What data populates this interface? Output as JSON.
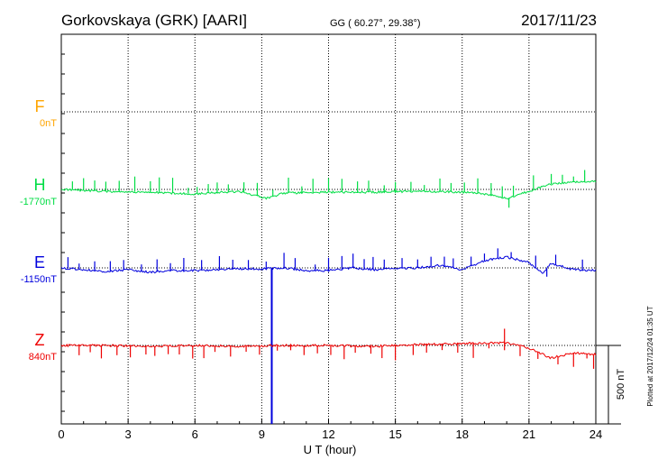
{
  "header": {
    "station": "Gorkovskaya (GRK)  [AARI]",
    "coords": "GG ( 60.27°,  29.38°)",
    "date": "2017/11/23"
  },
  "plotted_note": "Plotted at 2017/12/24 01:35 UT",
  "scale_label": "500 nT",
  "chart_data": {
    "type": "line",
    "xlabel": "U T (hour)",
    "xlim": [
      0,
      24
    ],
    "xticks": [
      "0",
      "3",
      "6",
      "9",
      "12",
      "15",
      "18",
      "21",
      "24"
    ],
    "series": [
      {
        "name": "F",
        "baseline_label": "0nT",
        "color": "#ffa500",
        "level_nT": 0,
        "values": []
      },
      {
        "name": "H",
        "baseline_label": "-1770nT",
        "color": "#00dd44",
        "level_nT": -1770,
        "trend": [
          [
            0,
            0
          ],
          [
            2,
            -2
          ],
          [
            4,
            -3
          ],
          [
            6,
            -5
          ],
          [
            8,
            -2
          ],
          [
            9.2,
            -10
          ],
          [
            10,
            -4
          ],
          [
            12,
            -3
          ],
          [
            14,
            -3
          ],
          [
            16,
            -2
          ],
          [
            18,
            -3
          ],
          [
            19,
            -5
          ],
          [
            20,
            -10
          ],
          [
            21,
            -2
          ],
          [
            22,
            6
          ],
          [
            23,
            8
          ],
          [
            24,
            9
          ]
        ],
        "spikes_up": [
          0.5,
          1,
          1.5,
          2,
          2.6,
          3.3,
          4,
          4.4,
          5,
          5.7,
          6.1,
          6.6,
          7,
          7.5,
          8.2,
          8.8,
          9.5,
          10.2,
          10.8,
          11.3,
          12,
          12.6,
          13.3,
          13.8,
          14.5,
          15,
          15.7,
          16.3,
          17,
          17.5,
          18.1,
          18.7,
          19.3,
          19.8,
          20.3,
          21.2,
          22,
          22.5,
          23,
          23.5
        ],
        "spikes_down": [
          20.1
        ]
      },
      {
        "name": "E",
        "baseline_label": "-1150nT",
        "color": "#0000dd",
        "level_nT": -1150,
        "trend": [
          [
            0,
            0
          ],
          [
            1,
            -2
          ],
          [
            2,
            -4
          ],
          [
            3,
            -2
          ],
          [
            4,
            -5
          ],
          [
            5,
            -3
          ],
          [
            6,
            -3
          ],
          [
            7,
            -2
          ],
          [
            8,
            -1
          ],
          [
            9,
            -1
          ],
          [
            10,
            0
          ],
          [
            11,
            -3
          ],
          [
            12,
            -3
          ],
          [
            13,
            0
          ],
          [
            14,
            -2
          ],
          [
            15,
            -1
          ],
          [
            16,
            0
          ],
          [
            17,
            3
          ],
          [
            18,
            -2
          ],
          [
            19,
            8
          ],
          [
            20,
            12
          ],
          [
            21,
            6
          ],
          [
            21.6,
            -6
          ],
          [
            22,
            5
          ],
          [
            23,
            -2
          ],
          [
            24,
            -3
          ]
        ],
        "spikes_up": [
          0.3,
          0.8,
          1.5,
          2.2,
          2.8,
          3.6,
          4.3,
          4.9,
          5.5,
          6.3,
          7.1,
          7.7,
          8.4,
          9.2,
          10,
          10.5,
          11.4,
          12,
          12.6,
          13.1,
          13.6,
          14,
          14.5,
          15.3,
          16,
          16.6,
          17.2,
          17.6,
          18.4,
          19,
          19.6,
          20.2,
          21.3,
          22.2,
          23.4
        ],
        "spikes_down": [
          21.8
        ],
        "outage": {
          "x": 9.45,
          "to_bottom": true
        }
      },
      {
        "name": "Z",
        "baseline_label": "840nT",
        "color": "#ee0000",
        "level_nT": 840,
        "trend": [
          [
            0,
            0
          ],
          [
            2,
            0
          ],
          [
            4,
            -1
          ],
          [
            6,
            0
          ],
          [
            8,
            -1
          ],
          [
            10,
            0
          ],
          [
            12,
            0
          ],
          [
            14,
            -1
          ],
          [
            16,
            1
          ],
          [
            18,
            2
          ],
          [
            20,
            3
          ],
          [
            21,
            -3
          ],
          [
            22,
            -14
          ],
          [
            23,
            -8
          ],
          [
            24,
            -10
          ]
        ],
        "spikes_down": [
          0.8,
          1.3,
          1.8,
          2.5,
          3.1,
          3.8,
          4.2,
          4.8,
          5.3,
          5.9,
          6.4,
          6.9,
          7.6,
          8.3,
          8.9,
          9.7,
          10.3,
          10.9,
          11.5,
          12.1,
          12.7,
          13.2,
          13.9,
          14.4,
          15,
          15.8,
          16.4,
          17.1,
          17.8,
          18.5,
          19.2,
          19.9,
          20.6,
          21.4,
          22.3,
          23,
          23.6,
          23.9
        ],
        "spikes_up": [
          19.9
        ]
      }
    ]
  }
}
